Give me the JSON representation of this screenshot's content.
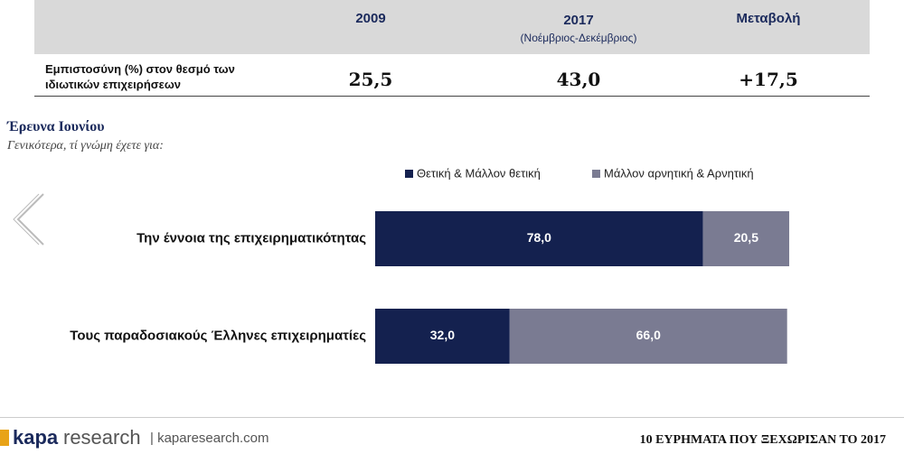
{
  "table": {
    "headers": [
      "2009",
      "2017",
      "Μεταβολή"
    ],
    "header_sub": "(Νοέμβριος-Δεκέμβριος)",
    "row": {
      "label": "Εμπιστοσύνη (%) στον θεσμό των ιδιωτικών επιχειρήσεων",
      "cells": [
        "25,5",
        "43,0",
        "+17,5"
      ]
    }
  },
  "section": {
    "title": "Έρευνα Ιουνίου",
    "subtitle": "Γενικότερα, τί γνώμη έχετε για:"
  },
  "chart_data": {
    "type": "bar",
    "orientation": "horizontal",
    "stacked": true,
    "categories": [
      "Την έννοια της επιχειρηματικότητας",
      "Τους παραδοσιακούς Έλληνες επιχειρηματίες"
    ],
    "series": [
      {
        "name": "Θετική & Μάλλον θετική",
        "color": "#14214f",
        "values": [
          78.0,
          32.0
        ],
        "value_labels": [
          "78,0",
          "32,0"
        ]
      },
      {
        "name": "Μάλλον αρνητική & Αρνητική",
        "color": "#7a7b92",
        "values": [
          20.5,
          66.0
        ],
        "value_labels": [
          "20,5",
          "66,0"
        ]
      }
    ],
    "xlim": [
      0,
      100
    ],
    "legend": "top"
  },
  "footer": {
    "brand": "kapa",
    "brand2": "research",
    "url": "| kaparesearch.com",
    "right": "10 ΕΥΡΗΜΑΤΑ ΠΟΥ ΞΕΧΩΡΙΣΑΝ ΤΟ 2017"
  }
}
